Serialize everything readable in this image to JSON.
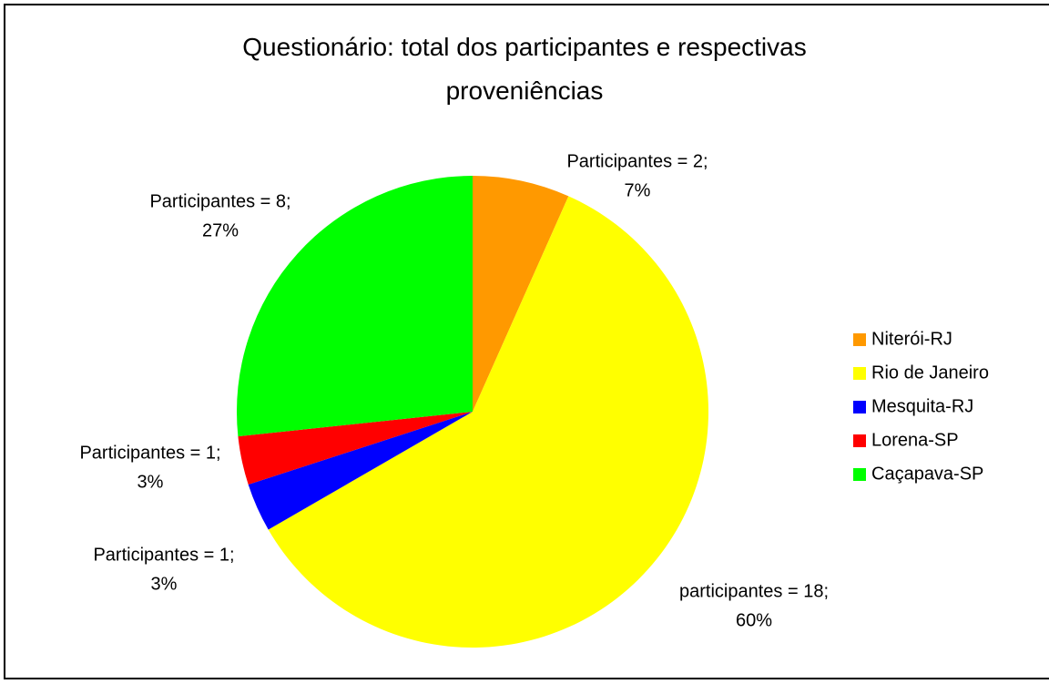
{
  "chart_data": {
    "type": "pie",
    "title": "Questionário: total dos participantes e respectivas proveniências",
    "categories": [
      "Niterói-RJ",
      "Rio de Janeiro",
      "Mesquita-RJ",
      "Lorena-SP",
      "Caçapava-SP"
    ],
    "values": [
      2,
      18,
      1,
      1,
      8
    ],
    "value_labels": [
      [
        "Participantes = 2;",
        "7%"
      ],
      [
        "participantes = 18;",
        "60%"
      ],
      [
        "Participantes = 1;",
        "3%"
      ],
      [
        "Participantes = 1;",
        "3%"
      ],
      [
        "Participantes = 8;",
        "27%"
      ]
    ],
    "colors": [
      "#ff9900",
      "#ffff00",
      "#0000ff",
      "#ff0000",
      "#00ff00"
    ],
    "legend": "right"
  }
}
